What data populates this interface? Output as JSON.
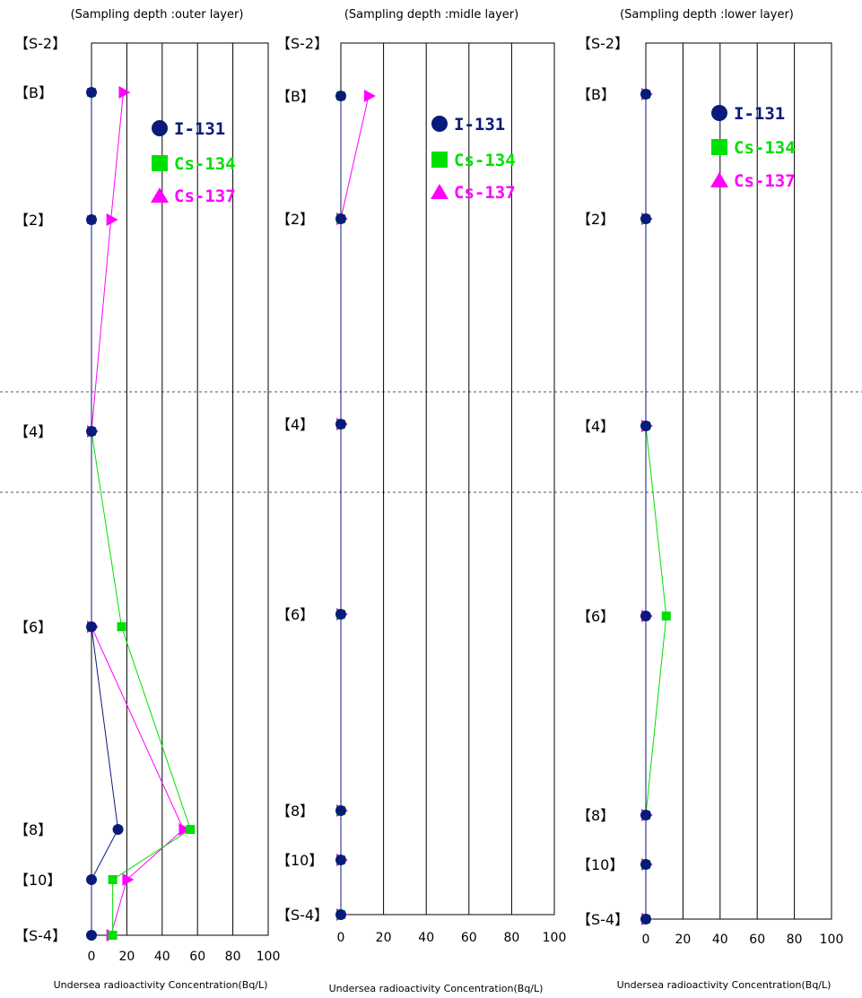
{
  "chart_data": [
    {
      "type": "line",
      "title": "(Sampling depth :outer layer)",
      "xlabel": "Undersea radioactivity Concentration(Bq/L)",
      "xlim": [
        0,
        100
      ],
      "x_ticks": [
        "0",
        "20",
        "40",
        "60",
        "80",
        "100"
      ],
      "stations": [
        "【S-2】",
        "【B】",
        "【2】",
        "【4】",
        "【6】",
        "【8】",
        "【10】",
        "【S-4】"
      ],
      "series": [
        {
          "name": "I-131",
          "color": "#0a1a7a",
          "marker": "circle",
          "values": [
            null,
            0,
            0,
            0,
            0,
            15,
            0,
            0
          ]
        },
        {
          "name": "Cs-134",
          "color": "#00e000",
          "marker": "square",
          "values": [
            null,
            0,
            0,
            0,
            17,
            56,
            12,
            12
          ]
        },
        {
          "name": "Cs-137",
          "color": "#ff00ff",
          "marker": "triangle",
          "values": [
            null,
            18,
            11,
            0,
            0,
            52,
            20,
            11
          ]
        }
      ]
    },
    {
      "type": "line",
      "title": "(Sampling depth :midle layer)",
      "xlabel": "Undersea radioactivity Concentration(Bq/L)",
      "xlim": [
        0,
        100
      ],
      "x_ticks": [
        "0",
        "20",
        "40",
        "60",
        "80",
        "100"
      ],
      "stations": [
        "【S-2】",
        "【B】",
        "【2】",
        "【4】",
        "【6】",
        "【8】",
        "【10】",
        "【S-4】"
      ],
      "series": [
        {
          "name": "I-131",
          "color": "#0a1a7a",
          "marker": "circle",
          "values": [
            null,
            0,
            0,
            0,
            0,
            0,
            0,
            0
          ]
        },
        {
          "name": "Cs-134",
          "color": "#00e000",
          "marker": "square",
          "values": [
            null,
            0,
            0,
            0,
            0,
            0,
            0,
            0
          ]
        },
        {
          "name": "Cs-137",
          "color": "#ff00ff",
          "marker": "triangle",
          "values": [
            null,
            13,
            0,
            0,
            0,
            0,
            0,
            0
          ]
        }
      ]
    },
    {
      "type": "line",
      "title": "(Sampling depth :lower layer)",
      "xlabel": "Undersea radioactivity Concentration(Bq/L)",
      "xlim": [
        0,
        100
      ],
      "x_ticks": [
        "0",
        "20",
        "40",
        "60",
        "80",
        "100"
      ],
      "stations": [
        "【S-2】",
        "【B】",
        "【2】",
        "【4】",
        "【6】",
        "【8】",
        "【10】",
        "【S-4】"
      ],
      "series": [
        {
          "name": "I-131",
          "color": "#0a1a7a",
          "marker": "circle",
          "values": [
            null,
            0,
            0,
            0,
            0,
            0,
            0,
            0
          ]
        },
        {
          "name": "Cs-134",
          "color": "#00e000",
          "marker": "square",
          "values": [
            null,
            0,
            0,
            0,
            11,
            0,
            0,
            0
          ]
        },
        {
          "name": "Cs-137",
          "color": "#ff00ff",
          "marker": "triangle",
          "values": [
            null,
            0,
            0,
            0,
            0,
            0,
            0,
            0
          ]
        }
      ]
    }
  ]
}
